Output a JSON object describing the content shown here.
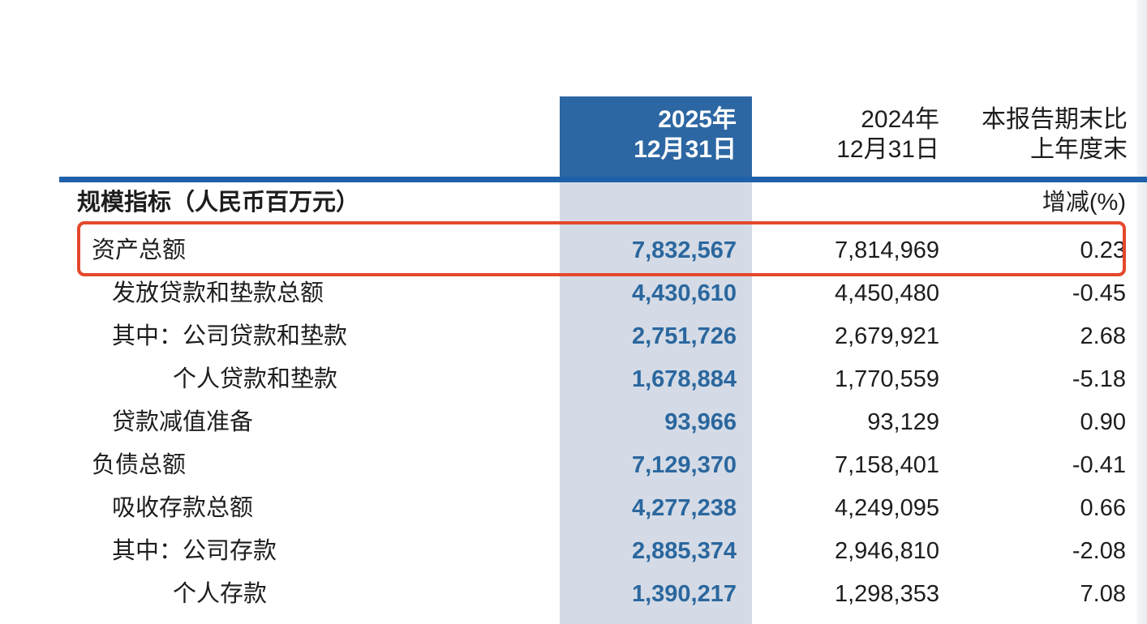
{
  "colors": {
    "header_blue": "#2d67a3",
    "band_blue": "#d4dbe6",
    "rule_blue": "#1e61a9",
    "value_blue": "#2b679e",
    "text": "#1d1d1f",
    "highlight_red": "#e5482c"
  },
  "header": {
    "col_2025": {
      "line1": "2025年",
      "line2": "12月31日"
    },
    "col_2024": {
      "line1": "2024年",
      "line2": "12月31日"
    },
    "col_change": {
      "line1": "本报告期末比",
      "line2": "上年度末"
    }
  },
  "section": {
    "title": "规模指标（人民币百万元）",
    "change_label": "增减(%)"
  },
  "rows": [
    {
      "label": "资产总额",
      "indent": 1,
      "v2025": "7,832,567",
      "v2024": "7,814,969",
      "pct": "0.23",
      "highlighted": true
    },
    {
      "label": "发放贷款和垫款总额",
      "indent": 2,
      "v2025": "4,430,610",
      "v2024": "4,450,480",
      "pct": "-0.45",
      "highlighted": false
    },
    {
      "label": "其中：公司贷款和垫款",
      "indent": 2,
      "v2025": "2,751,726",
      "v2024": "2,679,921",
      "pct": "2.68",
      "highlighted": false
    },
    {
      "label": "个人贷款和垫款",
      "indent": 3,
      "v2025": "1,678,884",
      "v2024": "1,770,559",
      "pct": "-5.18",
      "highlighted": false
    },
    {
      "label": "贷款减值准备",
      "indent": 2,
      "v2025": "93,966",
      "v2024": "93,129",
      "pct": "0.90",
      "highlighted": false
    },
    {
      "label": "负债总额",
      "indent": 1,
      "v2025": "7,129,370",
      "v2024": "7,158,401",
      "pct": "-0.41",
      "highlighted": false
    },
    {
      "label": "吸收存款总额",
      "indent": 2,
      "v2025": "4,277,238",
      "v2024": "4,249,095",
      "pct": "0.66",
      "highlighted": false
    },
    {
      "label": "其中：公司存款",
      "indent": 2,
      "v2025": "2,885,374",
      "v2024": "2,946,810",
      "pct": "-2.08",
      "highlighted": false
    },
    {
      "label": "个人存款",
      "indent": 3,
      "v2025": "1,390,217",
      "v2024": "1,298,353",
      "pct": "7.08",
      "highlighted": false
    }
  ]
}
